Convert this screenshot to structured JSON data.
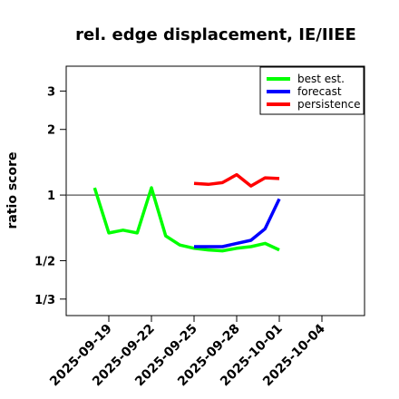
{
  "chart_data": {
    "type": "line",
    "title": "rel. edge displacement, IE/IIEE",
    "xlabel": "",
    "ylabel": "ratio score",
    "y_scale": "log",
    "ylim": [
      0.28,
      3.9
    ],
    "xlim": [
      "2025-09-16",
      "2025-10-07"
    ],
    "y_ticks": [
      {
        "value": 3,
        "label": "3"
      },
      {
        "value": 2,
        "label": "2"
      },
      {
        "value": 1,
        "label": "1"
      },
      {
        "value": 0.5,
        "label": "1/2"
      },
      {
        "value": 0.3333,
        "label": "1/3"
      }
    ],
    "x_ticks": [
      {
        "date": "2025-09-19",
        "label": "2025-09-19",
        "color": "#000000"
      },
      {
        "date": "2025-09-22",
        "label": "2025-09-22",
        "color": "#000000"
      },
      {
        "date": "2025-09-25",
        "label": "2025-09-25",
        "color": "#228B22"
      },
      {
        "date": "2025-09-28",
        "label": "2025-09-28",
        "color": "#000000"
      },
      {
        "date": "2025-10-01",
        "label": "2025-10-01",
        "color": "#000000"
      },
      {
        "date": "2025-10-04",
        "label": "2025-10-04",
        "color": "#000000"
      }
    ],
    "reference_line": 1,
    "legend_position": "top-right",
    "series": [
      {
        "name": "best est.",
        "color": "#00ff00",
        "points": [
          {
            "x": "2025-09-18",
            "y": 1.08
          },
          {
            "x": "2025-09-19",
            "y": 0.67
          },
          {
            "x": "2025-09-20",
            "y": 0.69
          },
          {
            "x": "2025-09-21",
            "y": 0.67
          },
          {
            "x": "2025-09-22",
            "y": 1.08
          },
          {
            "x": "2025-09-23",
            "y": 0.65
          },
          {
            "x": "2025-09-24",
            "y": 0.59
          },
          {
            "x": "2025-09-25",
            "y": 0.57
          },
          {
            "x": "2025-09-26",
            "y": 0.56
          },
          {
            "x": "2025-09-27",
            "y": 0.555
          },
          {
            "x": "2025-09-28",
            "y": 0.57
          },
          {
            "x": "2025-09-29",
            "y": 0.58
          },
          {
            "x": "2025-09-30",
            "y": 0.6
          },
          {
            "x": "2025-10-01",
            "y": 0.56
          }
        ]
      },
      {
        "name": "forecast",
        "color": "#0000ff",
        "points": [
          {
            "x": "2025-09-25",
            "y": 0.58
          },
          {
            "x": "2025-09-26",
            "y": 0.58
          },
          {
            "x": "2025-09-27",
            "y": 0.58
          },
          {
            "x": "2025-09-28",
            "y": 0.6
          },
          {
            "x": "2025-09-29",
            "y": 0.62
          },
          {
            "x": "2025-09-30",
            "y": 0.7
          },
          {
            "x": "2025-10-01",
            "y": 0.96
          }
        ]
      },
      {
        "name": "persistence",
        "color": "#ff0000",
        "points": [
          {
            "x": "2025-09-25",
            "y": 1.13
          },
          {
            "x": "2025-09-26",
            "y": 1.12
          },
          {
            "x": "2025-09-27",
            "y": 1.14
          },
          {
            "x": "2025-09-28",
            "y": 1.24
          },
          {
            "x": "2025-09-29",
            "y": 1.1
          },
          {
            "x": "2025-09-30",
            "y": 1.2
          },
          {
            "x": "2025-10-01",
            "y": 1.19
          }
        ]
      }
    ]
  }
}
